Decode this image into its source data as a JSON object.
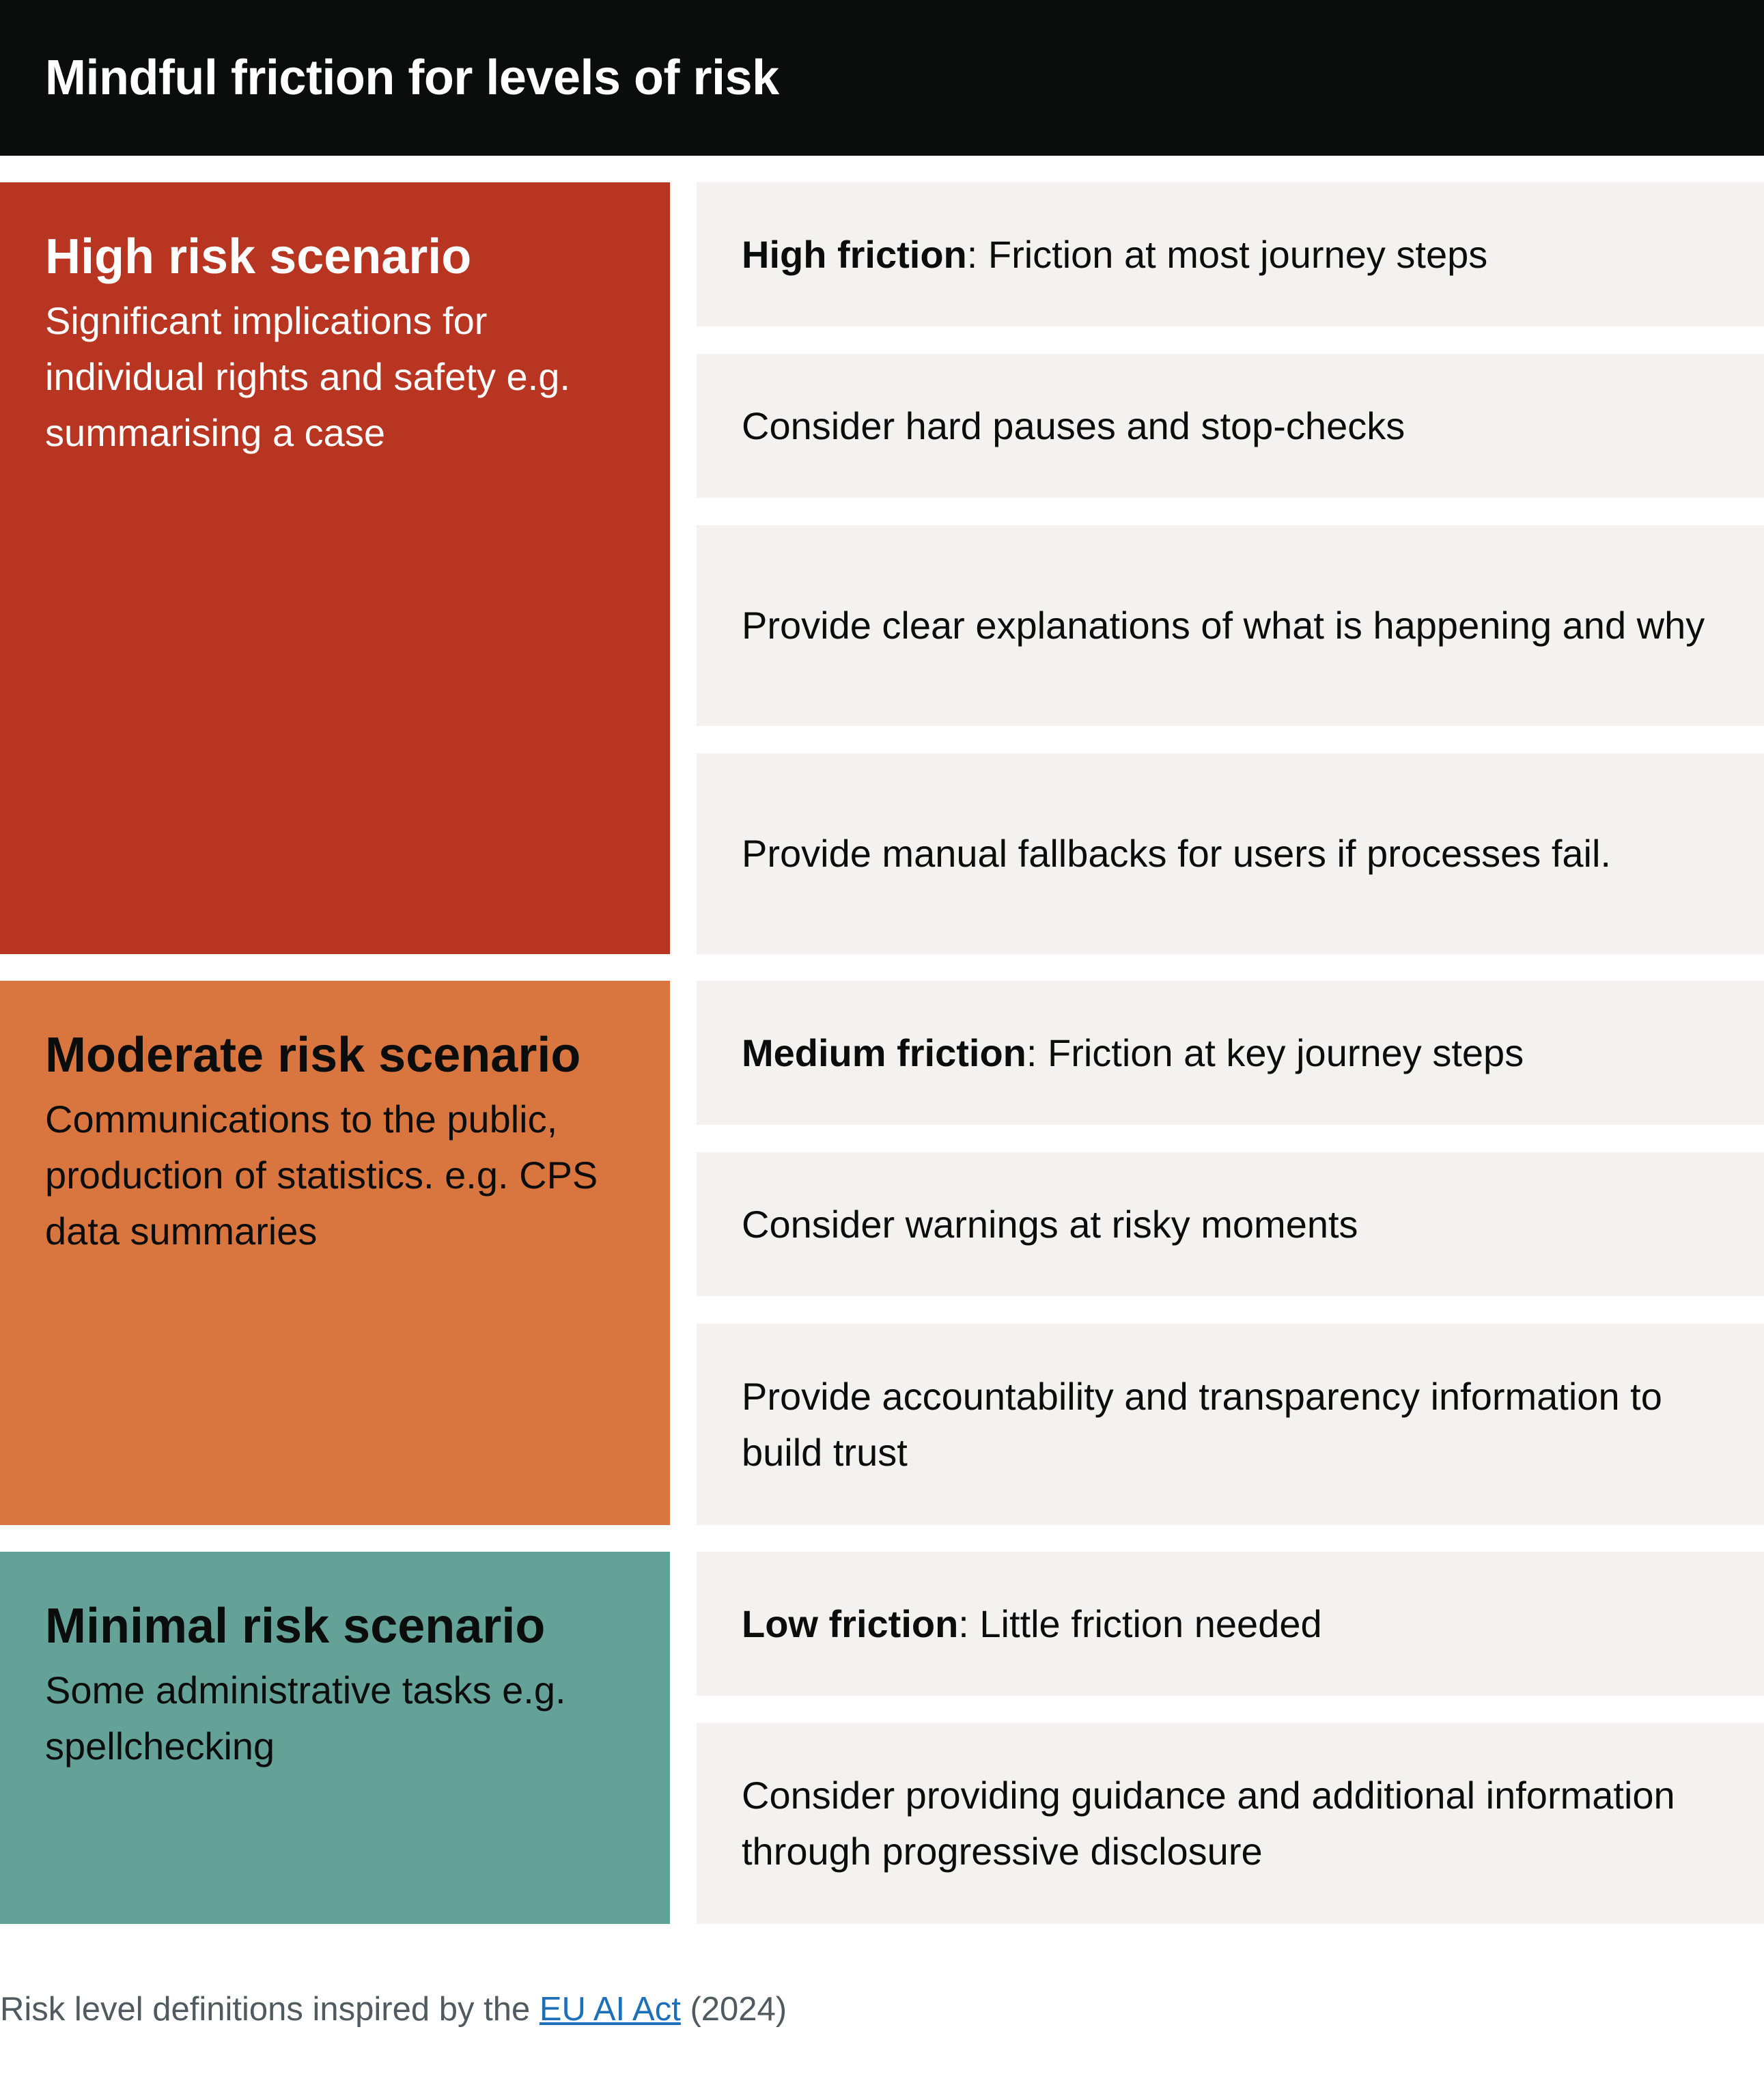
{
  "title": "Mindful friction for levels of risk",
  "scenarios": [
    {
      "heading": "High risk scenario",
      "description": "Significant implications for individual rights and safety e.g. summarising a case",
      "color": "#b83522",
      "friction_label": "High friction",
      "friction_text": ": Friction at most journey steps",
      "actions": [
        "Consider hard pauses and stop-checks",
        "Provide clear explanations of what is happening and why",
        "Provide manual fallbacks for users if processes fail."
      ]
    },
    {
      "heading": "Moderate risk scenario",
      "description": "Communications to the public, production of statistics. e.g. CPS data summaries",
      "color": "#d97640",
      "friction_label": "Medium friction",
      "friction_text": ": Friction at key journey steps",
      "actions": [
        "Consider warnings at risky moments",
        "Provide accountability and transparency information to build trust"
      ]
    },
    {
      "heading": "Minimal risk scenario",
      "description": "Some administrative tasks e.g. spellchecking",
      "color": "#64a196",
      "friction_label": "Low friction",
      "friction_text": ": Little friction needed",
      "actions": [
        "Consider providing guidance and additional information through progressive disclosure"
      ]
    }
  ],
  "footer": {
    "prefix": "Risk level definitions inspired by the ",
    "link_text": "EU AI Act",
    "suffix": " (2024)"
  },
  "colors": {
    "header_bg": "#0b0c0c",
    "card_bg": "#f3f2f1",
    "link": "#1d70b8"
  }
}
